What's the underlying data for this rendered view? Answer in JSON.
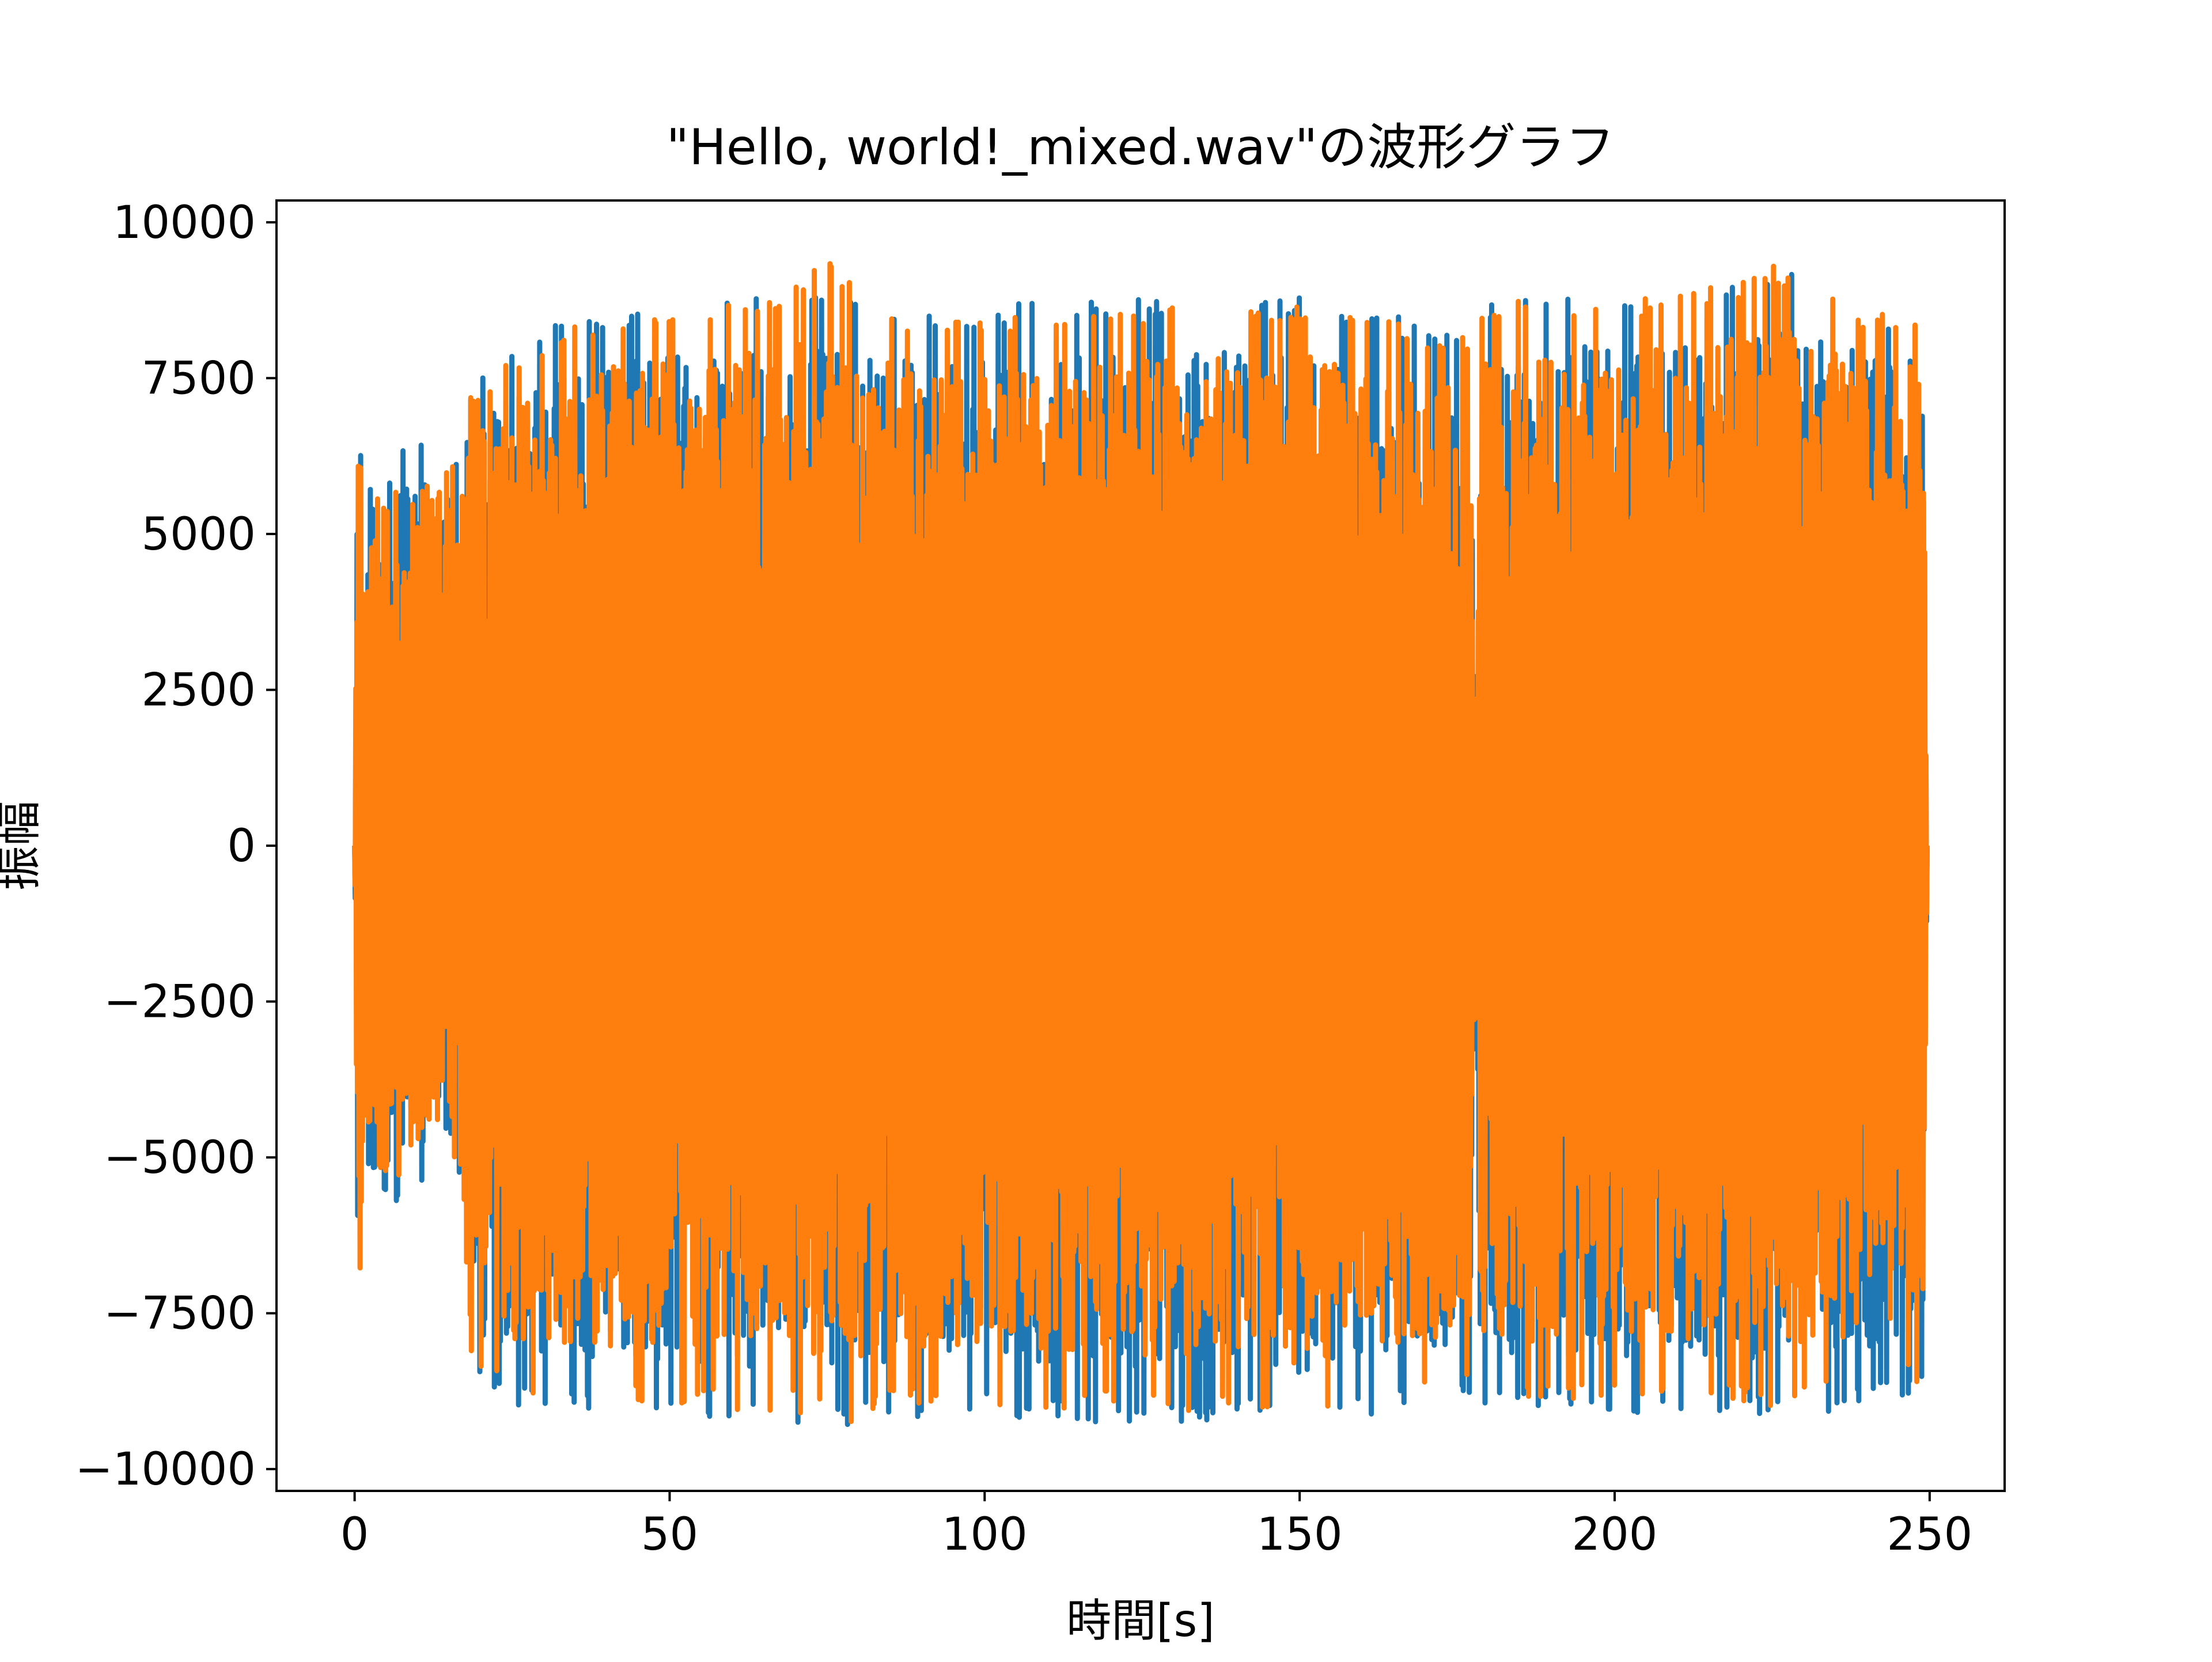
{
  "chart_data": {
    "type": "line",
    "title": "\"Hello, world!_mixed.wav\"の波形グラフ",
    "xlabel": "時間[s]",
    "ylabel": "振幅",
    "xlim": [
      -12.4,
      261.9
    ],
    "ylim": [
      -10350,
      10350
    ],
    "xticks": [
      0,
      50,
      100,
      150,
      200,
      250
    ],
    "yticks": [
      10000,
      7500,
      5000,
      2500,
      0,
      -2500,
      -5000,
      -7500,
      -10000
    ],
    "xtick_labels": [
      "0",
      "50",
      "100",
      "150",
      "200",
      "250"
    ],
    "ytick_labels": [
      "10000",
      "7500",
      "5000",
      "2500",
      "0",
      "−2500",
      "−5000",
      "−7500",
      "−10000"
    ],
    "grid": false,
    "legend": "none",
    "series": [
      {
        "color": "#1f77b4",
        "envelope": {
          "x": [
            0,
            0.4,
            0.9,
            1.5,
            3,
            5,
            8,
            12,
            15,
            17,
            18,
            25,
            35,
            45,
            55,
            65,
            75,
            80,
            85,
            95,
            105,
            115,
            125,
            135,
            145,
            150,
            155,
            160,
            165,
            170,
            175,
            177,
            178,
            178.6,
            180,
            190,
            200,
            210,
            220,
            226,
            230,
            235,
            240,
            245,
            248,
            249,
            249.6
          ],
          "upper": [
            0,
            7000,
            8300,
            5200,
            6200,
            5800,
            6500,
            6800,
            6200,
            6500,
            7400,
            8000,
            8600,
            8700,
            8800,
            8900,
            9000,
            8900,
            8700,
            8600,
            8700,
            8700,
            8800,
            8800,
            8800,
            8900,
            8700,
            8600,
            8500,
            8400,
            8300,
            8200,
            500,
            8600,
            8800,
            8900,
            8900,
            9000,
            9200,
            9400,
            9200,
            9000,
            8700,
            8600,
            8700,
            8800,
            0
          ],
          "lower": [
            0,
            -7000,
            -8700,
            -5200,
            -5300,
            -5600,
            -5900,
            -5400,
            -5100,
            -5500,
            -8600,
            -9000,
            -9100,
            -9200,
            -9200,
            -9300,
            -9300,
            -9300,
            -9200,
            -9100,
            -9200,
            -9300,
            -9300,
            -9300,
            -9200,
            -9400,
            -9300,
            -9200,
            -9100,
            -9000,
            -8900,
            -8800,
            -400,
            -8900,
            -9000,
            -9100,
            -9100,
            -9100,
            -9100,
            -9200,
            -9200,
            -9100,
            -9000,
            -8900,
            -8800,
            -8600,
            0
          ]
        }
      },
      {
        "color": "#ff7f0e",
        "envelope": {
          "x": [
            0,
            0.4,
            0.9,
            1.5,
            3,
            5,
            8,
            12,
            15,
            17,
            18,
            25,
            35,
            45,
            55,
            65,
            75,
            80,
            85,
            95,
            105,
            115,
            125,
            135,
            145,
            150,
            155,
            160,
            165,
            170,
            175,
            177,
            178,
            178.6,
            180,
            190,
            200,
            210,
            220,
            226,
            230,
            235,
            240,
            245,
            248,
            249,
            249.6
          ],
          "upper": [
            0,
            6800,
            8000,
            4800,
            5800,
            5500,
            6200,
            6600,
            6000,
            6300,
            7200,
            7900,
            8500,
            8600,
            8700,
            8800,
            9400,
            9200,
            8600,
            8500,
            8600,
            8600,
            8700,
            8700,
            8700,
            8800,
            8600,
            8500,
            8400,
            8300,
            8200,
            8100,
            400,
            8500,
            8700,
            8800,
            8800,
            8900,
            9100,
            9400,
            9100,
            8900,
            8600,
            8500,
            8600,
            8700,
            0
          ],
          "lower": [
            0,
            -6800,
            -8800,
            -4900,
            -5000,
            -5300,
            -5600,
            -5200,
            -4900,
            -5300,
            -8400,
            -8800,
            -8900,
            -9000,
            -9000,
            -9100,
            -9100,
            -9300,
            -9000,
            -8900,
            -9000,
            -9100,
            -9100,
            -9100,
            -9000,
            -9300,
            -9100,
            -9000,
            -8900,
            -8800,
            -8700,
            -8600,
            -300,
            -8700,
            -8800,
            -8900,
            -8900,
            -8900,
            -8900,
            -9000,
            -9000,
            -8900,
            -8800,
            -8700,
            -8600,
            -8400,
            0
          ]
        }
      }
    ]
  }
}
